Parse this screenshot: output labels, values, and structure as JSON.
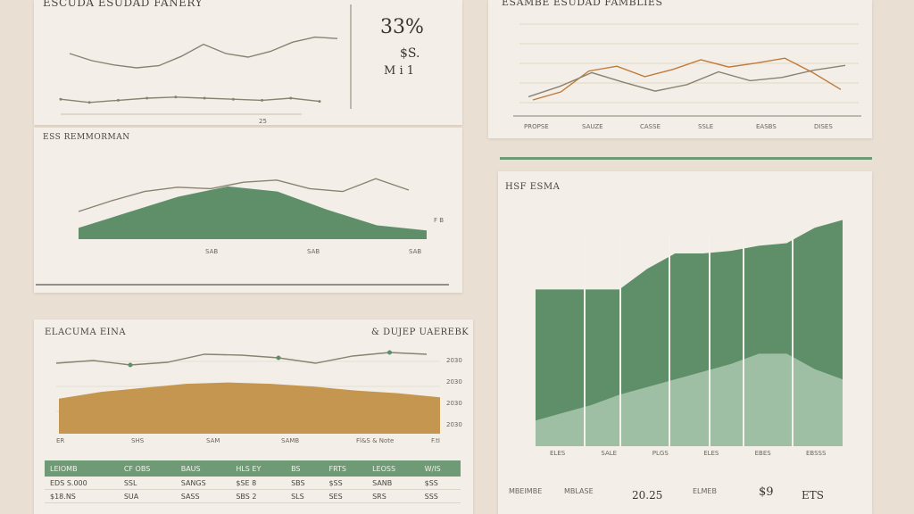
{
  "colors": {
    "green": "#5f8f69",
    "green_light": "#9fbfa4",
    "ochre": "#c4964f",
    "line": "#8a8270",
    "accent": "#c07a3a"
  },
  "panel_a": {
    "title": "ESCUDA ESUDAD FANERY",
    "stat_main": "33%",
    "stat_sub1": "$S.",
    "stat_sub2": "M  i  1",
    "x_tick": "25",
    "chart_data": {
      "type": "line",
      "series": [
        {
          "values": [
            5,
            4,
            3.4,
            3,
            3.3,
            4.6,
            6.3,
            5,
            4.5,
            5.3,
            6.6,
            7.3,
            7.1
          ]
        },
        {
          "values": [
            2.4,
            2.1,
            2.3,
            2.5,
            2.6,
            2.5,
            2.4,
            2.3,
            2.5,
            2.2
          ]
        }
      ]
    }
  },
  "panel_b": {
    "title": "ESAMBE ESUDAD FAMBLIES",
    "x_ticks": [
      "PROPSE",
      "SAUZE",
      "CASSE",
      "SSLE",
      "EASBS",
      "DISES"
    ],
    "chart_data": {
      "type": "line",
      "series": [
        {
          "values": [
            2,
            3,
            5.6,
            6.2,
            4.9,
            5.8,
            7,
            6.1,
            6.6,
            7.2,
            5.4,
            3.3
          ]
        },
        {
          "values": [
            2.4,
            3.7,
            5.4,
            4.2,
            3.1,
            3.9,
            5.5,
            4.4,
            4.8,
            5.7,
            6.3
          ]
        }
      ]
    }
  },
  "panel_c": {
    "title": "ESS REMMORMAN",
    "x_ticks": [
      "SAB",
      "SAB",
      "SAB"
    ],
    "x_end": "F B",
    "chart_data": {
      "type": "area",
      "series": [
        {
          "values": [
            2,
            3.5,
            4.8,
            5.4,
            5.2,
            6.1,
            6.4,
            5.2,
            4.8,
            6.6,
            5.0
          ]
        },
        {
          "values": [
            0.4,
            1.0,
            1.6,
            2.0,
            1.8,
            1.1,
            0.5,
            0.3
          ]
        }
      ]
    }
  },
  "panel_d": {
    "title": "ELACUMA EINA",
    "title_right": "& DUJEP UAEREBK",
    "y_right": [
      "2030",
      "2030",
      "2030",
      "2030"
    ],
    "x_ticks": [
      "ER",
      "SHS",
      "SAM",
      "SAMB",
      "Fl&S & Note",
      "F.tI"
    ],
    "chart_data": {
      "type": "area",
      "series": [
        {
          "values": [
            6.1,
            6.4,
            5.9,
            6.2,
            7.1,
            7.0,
            6.7,
            6.1,
            6.9,
            7.3,
            7.1
          ]
        },
        {
          "values": [
            2.6,
            3.1,
            3.4,
            3.7,
            3.8,
            3.7,
            3.5,
            3.2,
            3.0,
            2.7
          ]
        }
      ]
    },
    "table": {
      "headers": [
        "LEIOMB",
        "CF OBS",
        "BAUS",
        "HLS EY",
        "BS",
        "FRTS",
        "LEOSS",
        "W/IS"
      ],
      "rows": [
        [
          "EDS S.000",
          "SSL",
          "SANGS",
          "$SE 8",
          "SBS",
          "$SS",
          "SANB",
          "$SS"
        ],
        [
          "$18.NS",
          "SUA",
          "SASS",
          "SBS 2",
          "SLS",
          "SES",
          "SRS",
          "SSS"
        ]
      ]
    }
  },
  "panel_e": {
    "title": "HSF  ESMA",
    "x_ticks": [
      "ELES",
      "SALE",
      "PLGS",
      "ELES",
      "EBES",
      "EBSSS"
    ],
    "chart_data": {
      "type": "area",
      "series": [
        {
          "values": [
            6.1,
            6.1,
            6.1,
            6.1,
            6.9,
            7.5,
            7.5,
            7.6,
            7.8,
            7.9,
            8.5,
            8.8
          ]
        },
        {
          "values": [
            1.0,
            1.3,
            1.6,
            2.0,
            2.3,
            2.6,
            2.9,
            3.2,
            3.6,
            3.6,
            3.0,
            2.6
          ]
        }
      ]
    },
    "stats": {
      "labels": [
        "MBEIMBE",
        "MBLASE"
      ],
      "values": [
        "20.25",
        "ELMEB",
        "$9",
        "ETS"
      ]
    }
  }
}
